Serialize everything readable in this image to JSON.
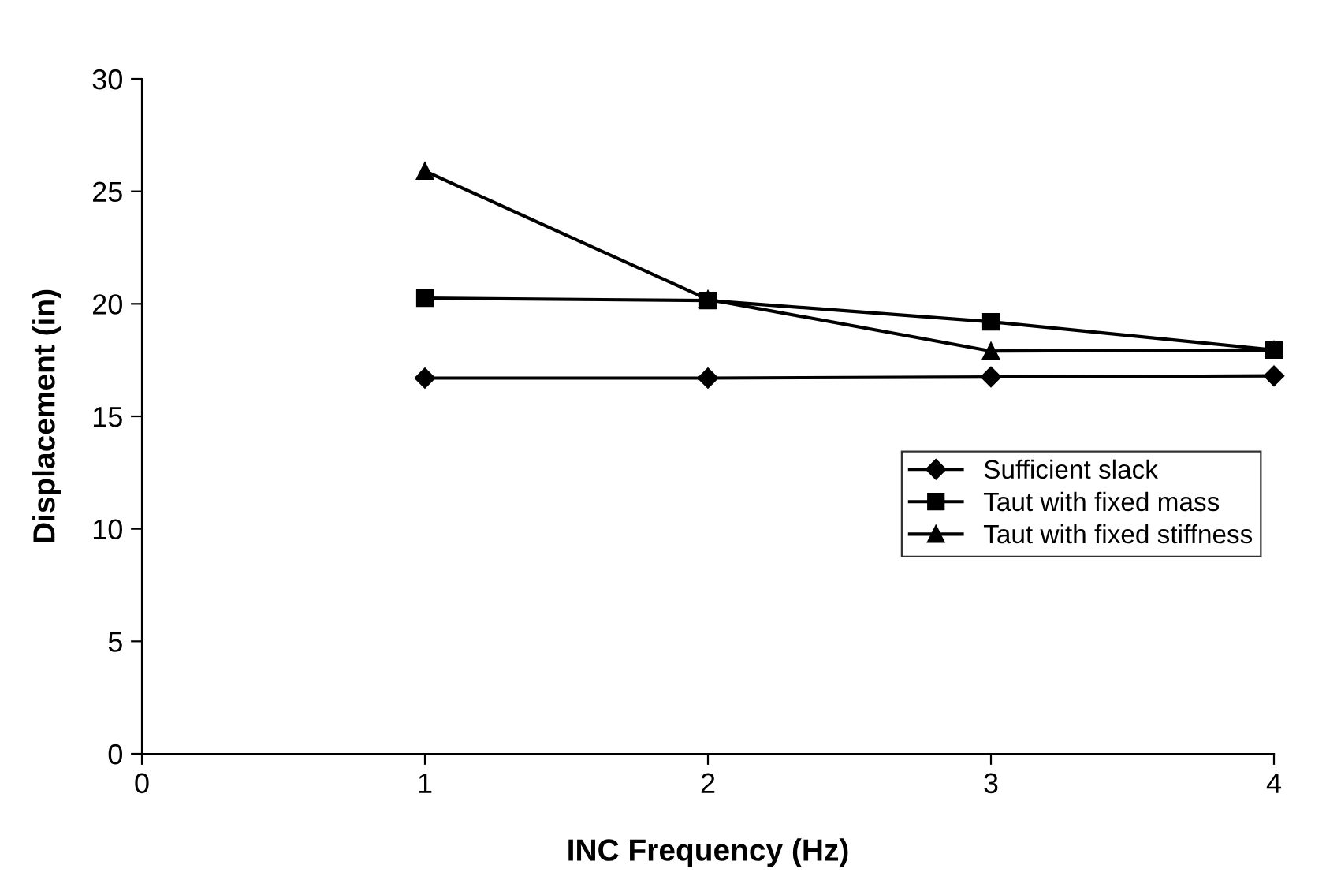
{
  "chart_data": {
    "type": "line",
    "xlabel": "INC Frequency (Hz)",
    "ylabel": "Displacement (in)",
    "x": [
      1,
      2,
      3,
      4
    ],
    "series": [
      {
        "name": "Sufficient slack",
        "color": "#000000",
        "marker": "diamond",
        "values": [
          16.7,
          16.7,
          16.75,
          16.8
        ]
      },
      {
        "name": "Taut with fixed mass",
        "color": "#000000",
        "marker": "square",
        "values": [
          20.25,
          20.15,
          19.2,
          17.95
        ]
      },
      {
        "name": "Taut with fixed stiffness",
        "color": "#000000",
        "marker": "triangle",
        "values": [
          25.9,
          20.2,
          17.9,
          17.95
        ]
      }
    ],
    "xlim": [
      0,
      4
    ],
    "xticks": [
      0,
      1,
      2,
      3,
      4
    ],
    "ylim": [
      0,
      30
    ],
    "yticks": [
      0,
      5,
      10,
      15,
      20,
      25,
      30
    ],
    "grid": false,
    "legend": "right",
    "line_style": "solid"
  }
}
